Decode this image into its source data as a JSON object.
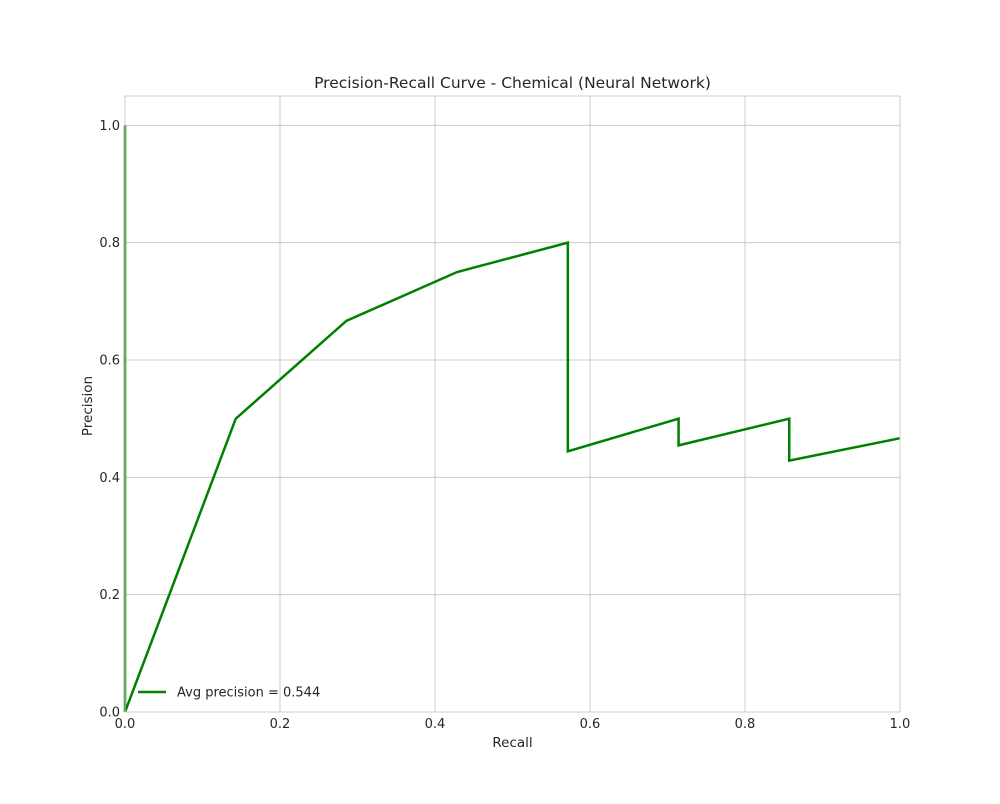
{
  "chart_data": {
    "type": "line",
    "title": "Precision-Recall Curve - Chemical (Neural Network)",
    "xlabel": "Recall",
    "ylabel": "Precision",
    "xlim": [
      0.0,
      1.0
    ],
    "ylim": [
      0.0,
      1.05
    ],
    "xticks": [
      0.0,
      0.2,
      0.4,
      0.6,
      0.8,
      1.0
    ],
    "xtick_labels": [
      "0.0",
      "0.2",
      "0.4",
      "0.6",
      "0.8",
      "1.0"
    ],
    "yticks": [
      0.0,
      0.2,
      0.4,
      0.6,
      0.8,
      1.0
    ],
    "ytick_labels": [
      "0.0",
      "0.2",
      "0.4",
      "0.6",
      "0.8",
      "1.0"
    ],
    "grid": true,
    "legend_position": "lower left",
    "series": [
      {
        "name": "Avg precision = 0.544",
        "color": "#008000",
        "x": [
          0.0,
          0.0,
          0.1429,
          0.2857,
          0.4286,
          0.5714,
          0.5714,
          0.7143,
          0.7143,
          0.8571,
          0.8571,
          1.0
        ],
        "y": [
          1.0,
          0.0,
          0.5,
          0.6667,
          0.75,
          0.8,
          0.4444,
          0.5,
          0.4545,
          0.5,
          0.4286,
          0.4667
        ]
      }
    ]
  }
}
